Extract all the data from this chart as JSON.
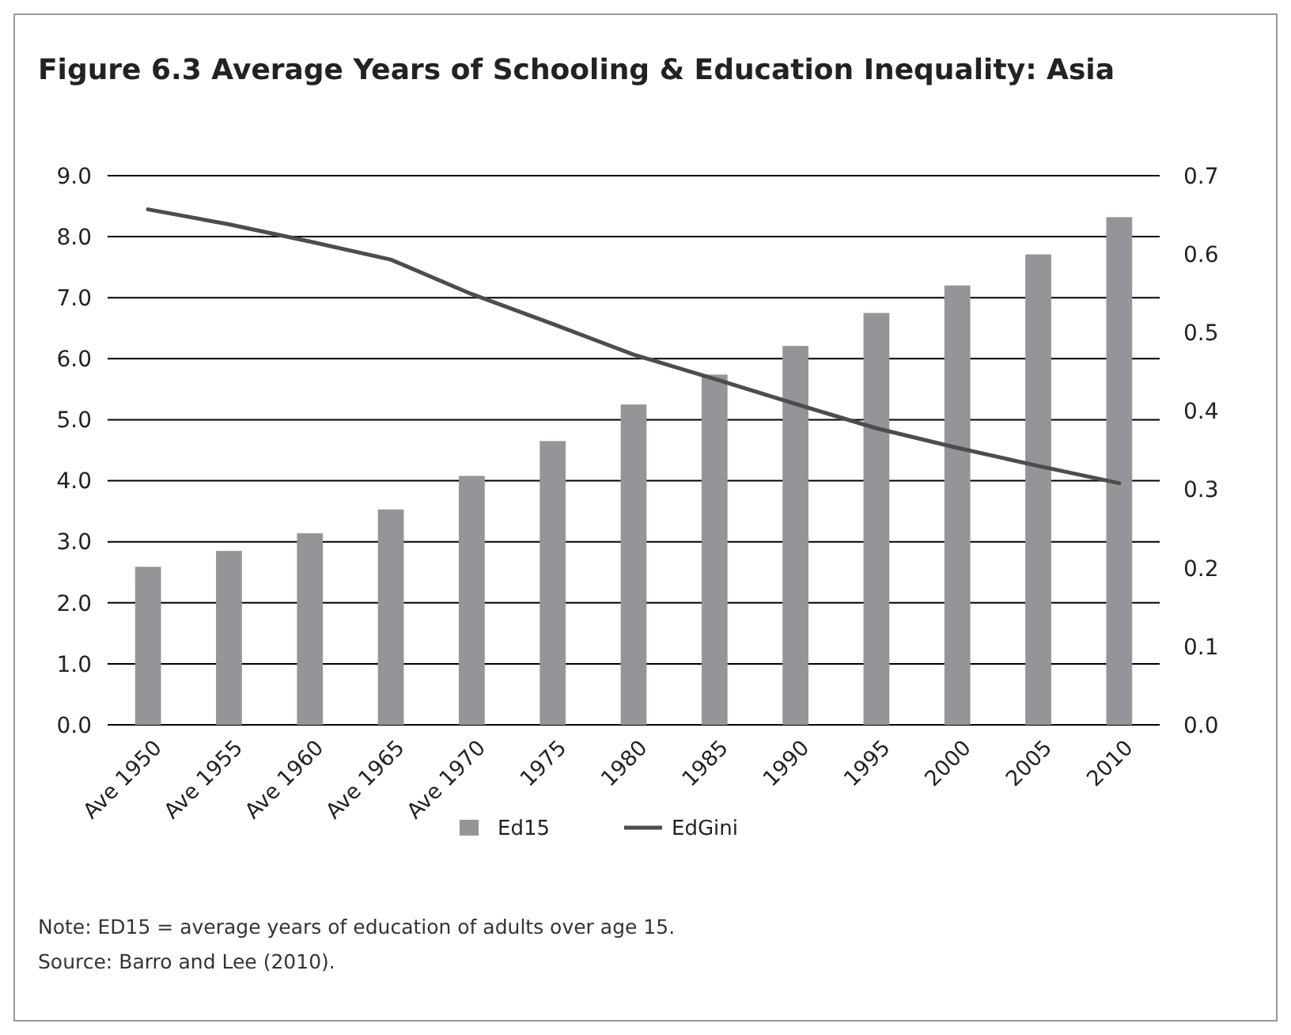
{
  "chart_data": {
    "type": "bar",
    "title": "Figure 6.3  Average Years of Schooling & Education Inequality: Asia",
    "categories": [
      "Ave 1950",
      "Ave 1955",
      "Ave 1960",
      "Ave 1965",
      "Ave 1970",
      "1975",
      "1980",
      "1985",
      "1990",
      "1995",
      "2000",
      "2005",
      "2010"
    ],
    "series": [
      {
        "name": "Ed15",
        "color": "#939598",
        "values": [
          2.59,
          2.85,
          3.14,
          3.53,
          4.08,
          4.65,
          5.25,
          5.74,
          6.21,
          6.75,
          7.2,
          7.71,
          8.32
        ]
      },
      {
        "name": "EdGini",
        "type": "line",
        "axis": "y2",
        "color": "#4d4d4f",
        "values": [
          0.657,
          0.638,
          0.616,
          0.593,
          0.549,
          0.511,
          0.472,
          0.441,
          0.409,
          0.378,
          0.353,
          0.33,
          0.308
        ]
      }
    ],
    "ylim": [
      0,
      9
    ],
    "yticks": [
      {
        "value": 0,
        "label": "0.0"
      },
      {
        "value": 1,
        "label": "1.0"
      },
      {
        "value": 2,
        "label": "2.0"
      },
      {
        "value": 3,
        "label": "3.0"
      },
      {
        "value": 4,
        "label": "4.0"
      },
      {
        "value": 5,
        "label": "5.0"
      },
      {
        "value": 6,
        "label": "6.0"
      },
      {
        "value": 7,
        "label": "7.0"
      },
      {
        "value": 8,
        "label": "8.0"
      },
      {
        "value": 9,
        "label": "9.0"
      }
    ],
    "y2lim": [
      0,
      0.7
    ],
    "y2ticks": [
      {
        "value": 0,
        "label": "0.0"
      },
      0.1,
      0.2,
      0.3,
      0.4,
      0.5,
      0.6,
      0.7
    ],
    "grid": "y",
    "legend": "bottom",
    "annotations": [
      "Note: ED15 = average years of education of adults over age 15.",
      "Source: Barro and Lee (2010)."
    ]
  }
}
